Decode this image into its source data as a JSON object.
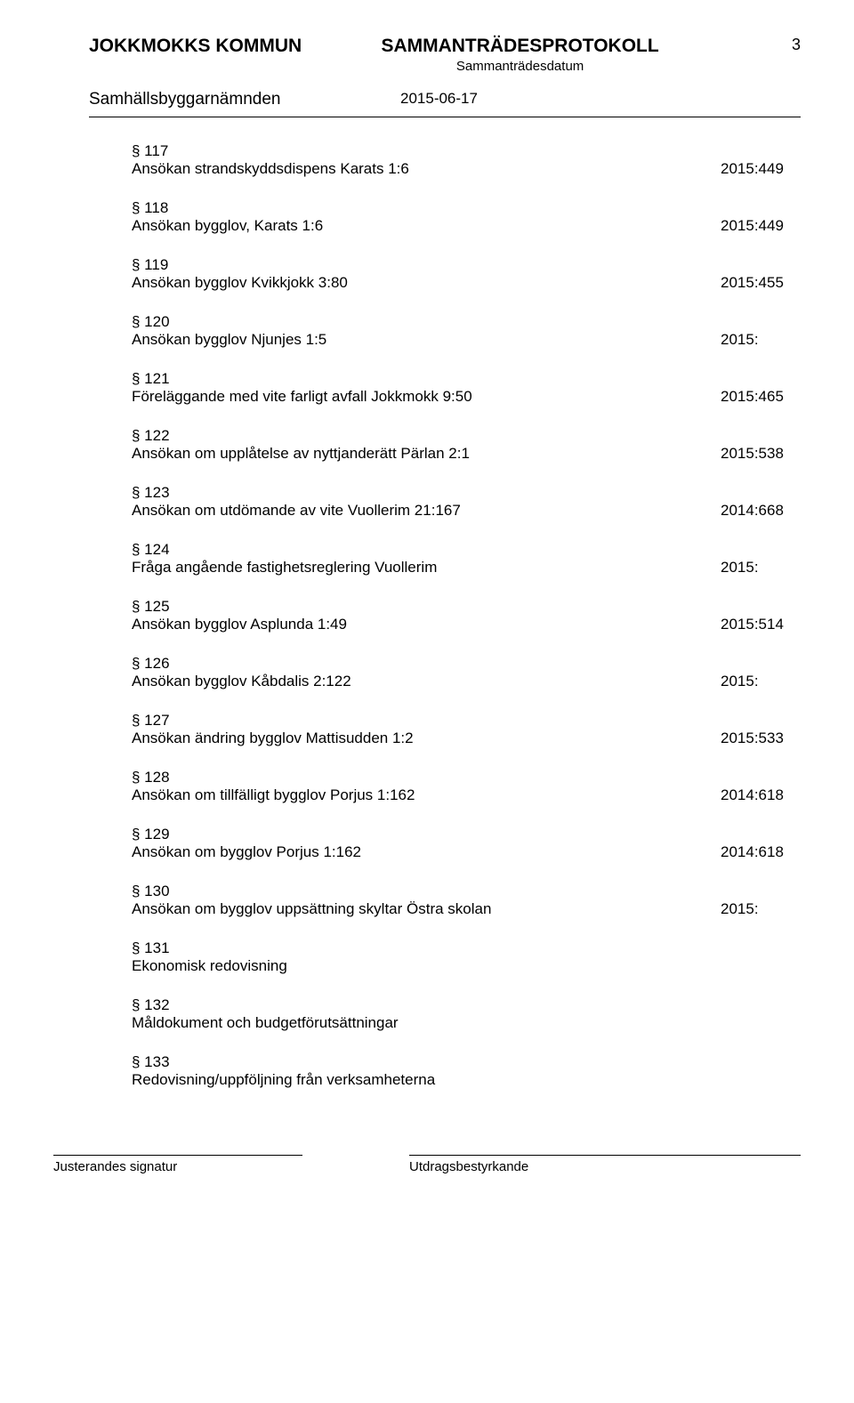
{
  "header": {
    "org": "JOKKMOKKS KOMMUN",
    "doc_title": "SAMMANTRÄDESPROTOKOLL",
    "doc_sub": "Sammanträdesdatum",
    "page_num": "3"
  },
  "subheader": {
    "committee": "Samhällsbyggarnämnden",
    "date": "2015-06-17"
  },
  "items": [
    {
      "section": "§ 117",
      "title": "Ansökan strandskyddsdispens Karats 1:6",
      "ref": "2015:449"
    },
    {
      "section": "§ 118",
      "title": "Ansökan bygglov, Karats 1:6",
      "ref": "2015:449"
    },
    {
      "section": "§ 119",
      "title": "Ansökan bygglov Kvikkjokk 3:80",
      "ref": "2015:455"
    },
    {
      "section": "§ 120",
      "title": "Ansökan bygglov Njunjes 1:5",
      "ref": "2015:"
    },
    {
      "section": "§ 121",
      "title": "Föreläggande med vite farligt avfall Jokkmokk 9:50",
      "ref": "2015:465"
    },
    {
      "section": "§ 122",
      "title": "Ansökan om upplåtelse av nyttjanderätt Pärlan 2:1",
      "ref": "2015:538"
    },
    {
      "section": "§ 123",
      "title": "Ansökan om utdömande av vite Vuollerim 21:167",
      "ref": "2014:668"
    },
    {
      "section": "§ 124",
      "title": "Fråga angående fastighetsreglering Vuollerim",
      "ref": "2015:"
    },
    {
      "section": "§ 125",
      "title": "Ansökan bygglov Asplunda 1:49",
      "ref": "2015:514"
    },
    {
      "section": "§ 126",
      "title": "Ansökan bygglov Kåbdalis 2:122",
      "ref": "2015:"
    },
    {
      "section": "§ 127",
      "title": "Ansökan ändring bygglov Mattisudden 1:2",
      "ref": "2015:533"
    },
    {
      "section": "§ 128",
      "title": "Ansökan om tillfälligt bygglov Porjus 1:162",
      "ref": "2014:618"
    },
    {
      "section": "§ 129",
      "title": "Ansökan om bygglov Porjus 1:162",
      "ref": "2014:618"
    },
    {
      "section": "§ 130",
      "title": "Ansökan om bygglov uppsättning skyltar Östra skolan",
      "ref": "2015:"
    },
    {
      "section": "§ 131",
      "title": "Ekonomisk redovisning",
      "ref": ""
    },
    {
      "section": "§ 132",
      "title": "Måldokument och budgetförutsättningar",
      "ref": ""
    },
    {
      "section": "§ 133",
      "title": "Redovisning/uppföljning från verksamheterna",
      "ref": ""
    }
  ],
  "footer": {
    "left": "Justerandes signatur",
    "right": "Utdragsbestyrkande"
  }
}
